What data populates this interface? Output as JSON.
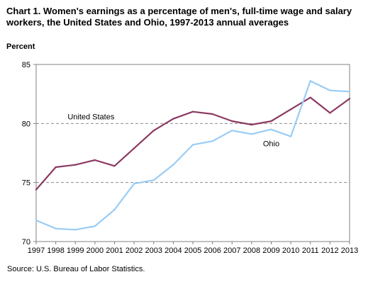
{
  "chart_data": {
    "type": "line",
    "title": "Chart 1. Women's earnings as a percentage of men's, full-time wage and salary workers, the United States and Ohio, 1997-2013  annual averages",
    "ylabel": "Percent",
    "xlabel": "",
    "x": [
      "1997",
      "1998",
      "1999",
      "2000",
      "2001",
      "2002",
      "2003",
      "2004",
      "2005",
      "2006",
      "2007",
      "2008",
      "2009",
      "2010",
      "2011",
      "2012",
      "2013"
    ],
    "ylim": [
      70,
      85
    ],
    "yticks": [
      70,
      75,
      80,
      85
    ],
    "grid": "dashed horizontal at 75 and 80",
    "series": [
      {
        "name": "United  States",
        "color": "#8b3a62",
        "values": [
          74.4,
          76.3,
          76.5,
          76.9,
          76.4,
          77.9,
          79.4,
          80.4,
          81.0,
          80.8,
          80.2,
          79.9,
          80.2,
          81.2,
          82.2,
          80.9,
          82.1
        ]
      },
      {
        "name": "Ohio",
        "color": "#99ccf5",
        "values": [
          71.8,
          71.1,
          71.0,
          71.3,
          72.7,
          74.9,
          75.2,
          76.5,
          78.2,
          78.5,
          79.4,
          79.1,
          79.5,
          78.9,
          83.6,
          82.8,
          82.7
        ]
      }
    ]
  },
  "source_text": "Source:  U.S. Bureau of Labor Statistics."
}
